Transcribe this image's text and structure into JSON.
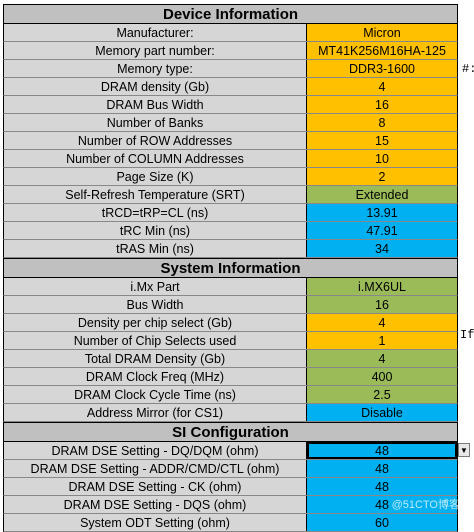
{
  "sections": {
    "device": {
      "title": "Device Information",
      "rows": [
        {
          "label": "Manufacturer:",
          "value": "Micron",
          "color": "#ffc000"
        },
        {
          "label": "Memory part number:",
          "value": "MT41K256M16HA-125",
          "color": "#ffc000"
        },
        {
          "label": "Memory type:",
          "value": "DDR3-1600",
          "color": "#ffc000"
        },
        {
          "label": "DRAM density (Gb)",
          "value": "4",
          "color": "#ffc000"
        },
        {
          "label": "DRAM Bus Width",
          "value": "16",
          "color": "#ffc000"
        },
        {
          "label": "Number of Banks",
          "value": "8",
          "color": "#ffc000"
        },
        {
          "label": "Number of ROW Addresses",
          "value": "15",
          "color": "#ffc000"
        },
        {
          "label": "Number of COLUMN Addresses",
          "value": "10",
          "color": "#ffc000"
        },
        {
          "label": "Page Size (K)",
          "value": "2",
          "color": "#ffc000"
        },
        {
          "label": "Self-Refresh Temperature (SRT)",
          "value": "Extended",
          "color": "#9bbb59"
        },
        {
          "label": "tRCD=tRP=CL (ns)",
          "value": "13.91",
          "color": "#00b0f0"
        },
        {
          "label": "tRC Min (ns)",
          "value": "47.91",
          "color": "#00b0f0"
        },
        {
          "label": "tRAS Min (ns)",
          "value": "34",
          "color": "#00b0f0"
        }
      ]
    },
    "system": {
      "title": "System Information",
      "rows": [
        {
          "label": "i.Mx Part",
          "value": "i.MX6UL",
          "color": "#9bbb59"
        },
        {
          "label": "Bus Width",
          "value": "16",
          "color": "#9bbb59"
        },
        {
          "label": "Density per chip select (Gb)",
          "value": "4",
          "color": "#ffc000"
        },
        {
          "label": "Number of Chip Selects used",
          "value": "1",
          "color": "#ffc000"
        },
        {
          "label": "Total DRAM Density (Gb)",
          "value": "4",
          "color": "#9bbb59"
        },
        {
          "label": "DRAM Clock Freq (MHz)",
          "value": "400",
          "color": "#9bbb59"
        },
        {
          "label": "DRAM Clock Cycle Time (ns)",
          "value": "2.5",
          "color": "#9bbb59"
        },
        {
          "label": "Address Mirror (for CS1)",
          "value": "Disable",
          "color": "#00b0f0"
        }
      ]
    },
    "si": {
      "title": "SI Configuration",
      "rows": [
        {
          "label": "DRAM DSE Setting - DQ/DQM (ohm)",
          "value": "48",
          "color": "#00b0f0"
        },
        {
          "label": "DRAM DSE Setting - ADDR/CMD/CTL (ohm)",
          "value": "48",
          "color": "#00b0f0"
        },
        {
          "label": "DRAM DSE Setting - CK (ohm)",
          "value": "48",
          "color": "#00b0f0"
        },
        {
          "label": "DRAM DSE Setting - DQS (ohm)",
          "value": "48",
          "color": "#00b0f0"
        },
        {
          "label": "System ODT Setting (ohm)",
          "value": "60",
          "color": "#00b0f0"
        }
      ]
    }
  },
  "side_notes": {
    "memory_type_note": "#:",
    "chip_select_note": "If"
  },
  "watermark": "@51CTO博客"
}
